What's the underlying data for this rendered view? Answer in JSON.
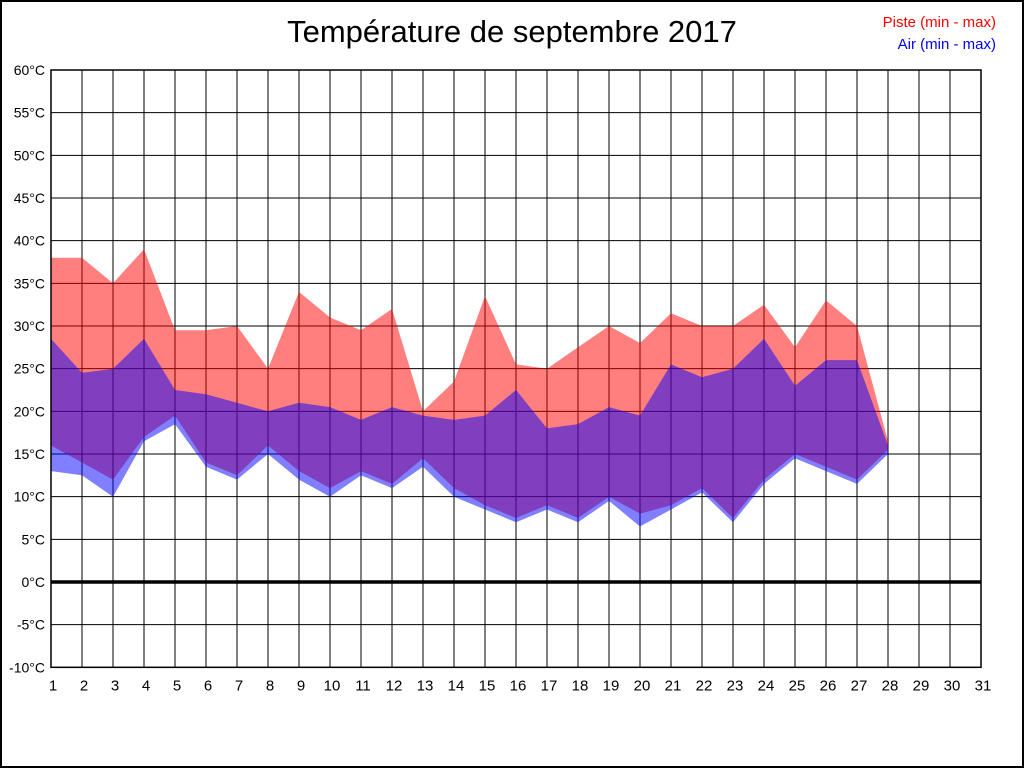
{
  "title": "Température de septembre 2017",
  "legend": {
    "piste": {
      "label": "Piste (min - max)",
      "color": "#ff0000"
    },
    "air": {
      "label": "Air (min - max)",
      "color": "#0000ff"
    }
  },
  "colors": {
    "grid": "#000000",
    "frame": "#000000",
    "zero_line": "#000000",
    "background": "#ffffff",
    "piste_fill": "#ff0000",
    "air_fill": "#0000ff",
    "fill_opacity": 0.5
  },
  "chart_data": {
    "type": "area",
    "title": "Température de septembre 2017",
    "xlabel": "",
    "ylabel": "",
    "xlim": [
      1,
      31
    ],
    "ylim": [
      -10,
      60
    ],
    "grid": true,
    "legend_position": "top-right",
    "x_ticks": [
      1,
      2,
      3,
      4,
      5,
      6,
      7,
      8,
      9,
      10,
      11,
      12,
      13,
      14,
      15,
      16,
      17,
      18,
      19,
      20,
      21,
      22,
      23,
      24,
      25,
      26,
      27,
      28,
      29,
      30,
      31
    ],
    "y_tick_labels": [
      "60°C",
      "55°C",
      "50°C",
      "45°C",
      "40°C",
      "35°C",
      "30°C",
      "25°C",
      "20°C",
      "15°C",
      "10°C",
      "5°C",
      "0°C",
      "-5°C",
      "-10°C"
    ],
    "y_tick_values": [
      60,
      55,
      50,
      45,
      40,
      35,
      30,
      25,
      20,
      15,
      10,
      5,
      0,
      -5,
      -10
    ],
    "zero_line_value": 0,
    "days": [
      1,
      2,
      3,
      4,
      5,
      6,
      7,
      8,
      9,
      10,
      11,
      12,
      13,
      14,
      15,
      16,
      17,
      18,
      19,
      20,
      21,
      22,
      23,
      24,
      25,
      26,
      27,
      28
    ],
    "series": [
      {
        "name": "Piste (min - max)",
        "color": "#ff0000",
        "max": [
          38,
          38,
          35,
          39,
          29.5,
          29.5,
          30,
          25,
          34,
          31,
          29.5,
          32,
          20,
          23.5,
          33.5,
          25.5,
          25,
          27.5,
          30,
          28,
          31.5,
          30,
          30,
          32.5,
          27.5,
          33,
          30,
          16.5
        ],
        "min": [
          16,
          14,
          12,
          17,
          19.5,
          14,
          12.5,
          16,
          13,
          11,
          13,
          11.5,
          14.5,
          11,
          9,
          7.5,
          9,
          7.5,
          10,
          8,
          9,
          11,
          7.5,
          12,
          15,
          13.5,
          12,
          15.5
        ]
      },
      {
        "name": "Air (min - max)",
        "color": "#0000ff",
        "max": [
          28.5,
          24.5,
          25,
          28.5,
          22.5,
          22,
          21,
          20,
          21,
          20.5,
          19,
          20.5,
          19.5,
          19,
          19.5,
          22.5,
          18,
          18.5,
          20.5,
          19.5,
          25.5,
          24,
          25,
          28.5,
          23,
          26,
          26,
          16
        ],
        "min": [
          13,
          12.5,
          10,
          16.5,
          18.5,
          13.5,
          12,
          15,
          12,
          10,
          12.5,
          11,
          13.5,
          10,
          8.5,
          7,
          8.5,
          7,
          9.5,
          6.5,
          8.5,
          10.5,
          7,
          11.5,
          14.5,
          13,
          11.5,
          15
        ]
      }
    ]
  }
}
